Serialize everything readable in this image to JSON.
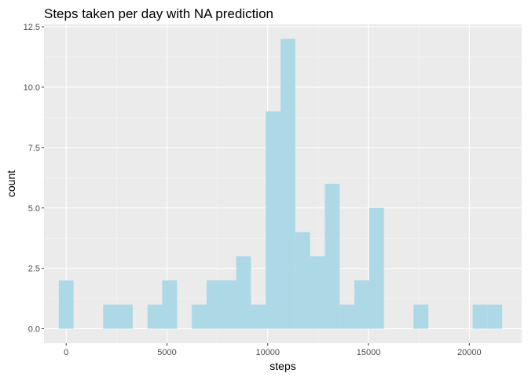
{
  "chart_data": {
    "type": "bar",
    "title": "Steps taken per day with NA prediction",
    "xlabel": "steps",
    "ylabel": "count",
    "xlim": [
      -1100,
      22600
    ],
    "ylim": [
      -0.6,
      12.6
    ],
    "x_ticks": [
      0,
      5000,
      10000,
      15000,
      20000
    ],
    "x_tick_labels": [
      "0",
      "5000",
      "10000",
      "15000",
      "20000"
    ],
    "y_ticks": [
      0,
      2.5,
      5,
      7.5,
      10,
      12.5
    ],
    "y_tick_labels": [
      "0.0",
      "2.5",
      "5.0",
      "7.5",
      "10.0",
      "12.5"
    ],
    "bin_width": 733,
    "bin_centers": [
      0,
      733,
      1467,
      2200,
      2933,
      3667,
      4400,
      5133,
      5867,
      6600,
      7333,
      8067,
      8800,
      9533,
      10267,
      11000,
      11733,
      12467,
      13200,
      13933,
      14667,
      15400,
      16133,
      16867,
      17600,
      18333,
      19067,
      19800,
      20533,
      21267
    ],
    "counts": [
      2,
      0,
      0,
      1,
      1,
      0,
      1,
      2,
      0,
      1,
      2,
      2,
      3,
      1,
      9,
      12,
      4,
      3,
      6,
      1,
      2,
      5,
      0,
      0,
      1,
      0,
      0,
      0,
      1,
      1
    ],
    "colors": {
      "panel_background": "#ebebeb",
      "major_grid": "#ffffff",
      "minor_grid": "#f5f5f5",
      "bar_fill": "#add8e6",
      "tick_color": "#333333"
    },
    "grid": true,
    "legend": "none"
  }
}
